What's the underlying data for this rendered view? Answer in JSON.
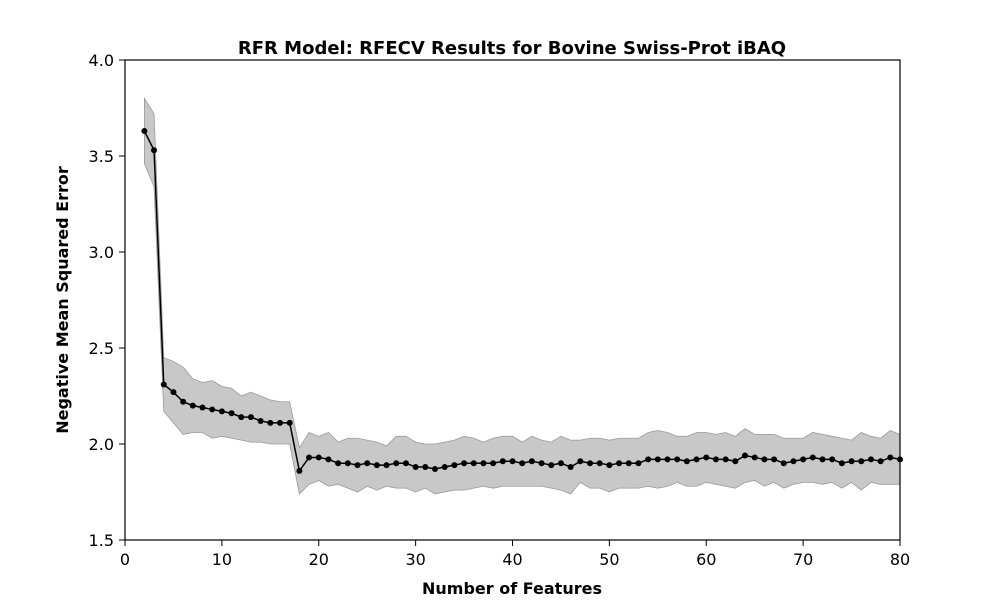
{
  "chart_data": {
    "type": "line",
    "title": "RFR Model: RFECV Results for Bovine Swiss-Prot iBAQ",
    "xlabel": "Number of Features",
    "ylabel": "Negative Mean Squared Error",
    "xlim": [
      0,
      80
    ],
    "ylim": [
      1.5,
      4.0
    ],
    "xticks": [
      "0",
      "10",
      "20",
      "30",
      "40",
      "50",
      "60",
      "70",
      "80"
    ],
    "yticks": [
      "1.5",
      "2.0",
      "2.5",
      "3.0",
      "3.5",
      "4.0"
    ],
    "grid": false,
    "colors": {
      "line": "#000000",
      "band": "#c8c8c8",
      "band_edge": "#9a9a9a"
    },
    "series": [
      {
        "x": [
          2,
          3,
          4,
          5,
          6,
          7,
          8,
          9,
          10,
          11,
          12,
          13,
          14,
          15,
          16,
          17,
          18,
          19,
          20,
          21,
          22,
          23,
          24,
          25,
          26,
          27,
          28,
          29,
          30,
          31,
          32,
          33,
          34,
          35,
          36,
          37,
          38,
          39,
          40,
          41,
          42,
          43,
          44,
          45,
          46,
          47,
          48,
          49,
          50,
          51,
          52,
          53,
          54,
          55,
          56,
          57,
          58,
          59,
          60,
          61,
          62,
          63,
          64,
          65,
          66,
          67,
          68,
          69,
          70,
          71,
          72,
          73,
          74,
          75,
          76,
          77,
          78,
          79,
          80
        ],
        "y": [
          3.63,
          3.53,
          2.31,
          2.27,
          2.22,
          2.2,
          2.19,
          2.18,
          2.17,
          2.16,
          2.14,
          2.14,
          2.12,
          2.11,
          2.11,
          2.11,
          1.86,
          1.93,
          1.93,
          1.92,
          1.9,
          1.9,
          1.89,
          1.9,
          1.89,
          1.89,
          1.9,
          1.9,
          1.88,
          1.88,
          1.87,
          1.88,
          1.89,
          1.9,
          1.9,
          1.9,
          1.9,
          1.91,
          1.91,
          1.9,
          1.91,
          1.9,
          1.89,
          1.9,
          1.88,
          1.91,
          1.9,
          1.9,
          1.89,
          1.9,
          1.9,
          1.9,
          1.92,
          1.92,
          1.92,
          1.92,
          1.91,
          1.92,
          1.93,
          1.92,
          1.92,
          1.91,
          1.94,
          1.93,
          1.92,
          1.92,
          1.9,
          1.91,
          1.92,
          1.93,
          1.92,
          1.92,
          1.9,
          1.91,
          1.91,
          1.92,
          1.91,
          1.93,
          1.92
        ],
        "upper": [
          3.8,
          3.72,
          2.45,
          2.43,
          2.4,
          2.34,
          2.32,
          2.33,
          2.3,
          2.29,
          2.25,
          2.27,
          2.25,
          2.23,
          2.22,
          2.22,
          1.98,
          2.06,
          2.04,
          2.06,
          2.01,
          2.03,
          2.03,
          2.02,
          2.01,
          1.99,
          2.04,
          2.04,
          2.01,
          2.0,
          2.0,
          2.01,
          2.02,
          2.04,
          2.03,
          2.01,
          2.03,
          2.04,
          2.04,
          2.01,
          2.04,
          2.02,
          2.01,
          2.04,
          2.02,
          2.02,
          2.03,
          2.03,
          2.02,
          2.03,
          2.03,
          2.03,
          2.06,
          2.07,
          2.06,
          2.04,
          2.04,
          2.06,
          2.06,
          2.05,
          2.06,
          2.04,
          2.08,
          2.05,
          2.05,
          2.05,
          2.03,
          2.03,
          2.03,
          2.06,
          2.05,
          2.04,
          2.03,
          2.02,
          2.06,
          2.04,
          2.03,
          2.07,
          2.05
        ],
        "lower": [
          3.46,
          3.34,
          2.17,
          2.11,
          2.05,
          2.06,
          2.06,
          2.03,
          2.04,
          2.03,
          2.02,
          2.01,
          2.01,
          2.0,
          2.0,
          2.0,
          1.74,
          1.79,
          1.81,
          1.78,
          1.79,
          1.77,
          1.75,
          1.78,
          1.76,
          1.78,
          1.77,
          1.77,
          1.75,
          1.77,
          1.74,
          1.75,
          1.76,
          1.76,
          1.77,
          1.78,
          1.77,
          1.78,
          1.78,
          1.78,
          1.78,
          1.78,
          1.77,
          1.76,
          1.74,
          1.8,
          1.77,
          1.77,
          1.75,
          1.77,
          1.77,
          1.77,
          1.78,
          1.77,
          1.78,
          1.8,
          1.78,
          1.78,
          1.8,
          1.79,
          1.78,
          1.77,
          1.8,
          1.81,
          1.78,
          1.8,
          1.77,
          1.79,
          1.8,
          1.8,
          1.79,
          1.8,
          1.77,
          1.8,
          1.76,
          1.8,
          1.79,
          1.79,
          1.79
        ]
      }
    ]
  }
}
